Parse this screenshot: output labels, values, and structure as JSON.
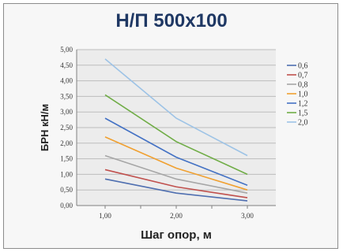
{
  "chart_data": {
    "type": "line",
    "title": "Н/П 500x100",
    "xlabel": "Шаг опор, м",
    "ylabel": "БРН кН/м",
    "x": [
      1.0,
      2.0,
      3.0
    ],
    "xticks": [
      "1,00",
      "2,00",
      "3,00"
    ],
    "xlim": [
      0.6,
      3.4
    ],
    "ylim": [
      0,
      5
    ],
    "yticks": [
      "0,00",
      "0,50",
      "1,00",
      "1,50",
      "2,00",
      "2,50",
      "3,00",
      "3,50",
      "4,00",
      "4,50",
      "5,00"
    ],
    "grid": true,
    "legend_position": "right",
    "series": [
      {
        "name": "0,6",
        "color": "#4f6fb0",
        "values": [
          0.85,
          0.4,
          0.15
        ]
      },
      {
        "name": "0,7",
        "color": "#c0504d",
        "values": [
          1.15,
          0.6,
          0.25
        ]
      },
      {
        "name": "0,8",
        "color": "#a6a6a6",
        "values": [
          1.6,
          0.85,
          0.4
        ]
      },
      {
        "name": "1,0",
        "color": "#f0a030",
        "values": [
          2.2,
          1.2,
          0.5
        ]
      },
      {
        "name": "1,2",
        "color": "#4472c4",
        "values": [
          2.8,
          1.55,
          0.65
        ]
      },
      {
        "name": "1,5",
        "color": "#70ad47",
        "values": [
          3.55,
          2.05,
          1.0
        ]
      },
      {
        "name": "2,0",
        "color": "#9dc3e6",
        "values": [
          4.7,
          2.8,
          1.6
        ]
      }
    ]
  }
}
